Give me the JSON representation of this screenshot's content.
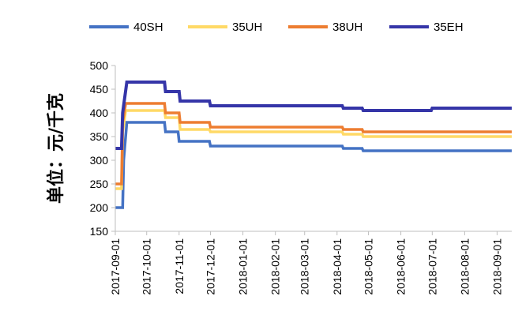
{
  "chart_data": {
    "type": "line",
    "title": "",
    "xlabel": "",
    "ylabel": "单位：元/千克",
    "ylim": [
      150,
      500
    ],
    "yticks": [
      150,
      200,
      250,
      300,
      350,
      400,
      450,
      500
    ],
    "xlim": [
      "2017-09-01",
      "2018-09-15"
    ],
    "xticks": [
      "2017-09-01",
      "2017-10-01",
      "2017-11-01",
      "2017-12-01",
      "2018-01-01",
      "2018-02-01",
      "2018-03-01",
      "2018-04-01",
      "2018-05-01",
      "2018-06-01",
      "2018-07-01",
      "2018-08-01",
      "2018-09-01"
    ],
    "grid": false,
    "legend_position": "top",
    "series": [
      {
        "name": "40SH",
        "color": "#4472C4",
        "points": [
          [
            "2017-09-01",
            200
          ],
          [
            "2017-09-08",
            200
          ],
          [
            "2017-09-09",
            300
          ],
          [
            "2017-09-12",
            380
          ],
          [
            "2017-10-18",
            380
          ],
          [
            "2017-10-19",
            360
          ],
          [
            "2017-10-31",
            360
          ],
          [
            "2017-11-01",
            340
          ],
          [
            "2017-11-30",
            340
          ],
          [
            "2017-12-01",
            330
          ],
          [
            "2018-04-06",
            330
          ],
          [
            "2018-04-07",
            325
          ],
          [
            "2018-04-25",
            325
          ],
          [
            "2018-04-26",
            320
          ],
          [
            "2018-09-15",
            320
          ]
        ]
      },
      {
        "name": "35UH",
        "color": "#FFD966",
        "points": [
          [
            "2017-09-01",
            240
          ],
          [
            "2017-09-07",
            240
          ],
          [
            "2017-09-08",
            360
          ],
          [
            "2017-09-11",
            405
          ],
          [
            "2017-10-18",
            405
          ],
          [
            "2017-10-19",
            390
          ],
          [
            "2017-11-01",
            390
          ],
          [
            "2017-11-02",
            365
          ],
          [
            "2017-11-30",
            365
          ],
          [
            "2017-12-01",
            360
          ],
          [
            "2018-04-06",
            360
          ],
          [
            "2018-04-07",
            355
          ],
          [
            "2018-04-25",
            355
          ],
          [
            "2018-04-26",
            350
          ],
          [
            "2018-09-15",
            350
          ]
        ]
      },
      {
        "name": "38UH",
        "color": "#ED7D31",
        "points": [
          [
            "2017-09-01",
            250
          ],
          [
            "2017-09-07",
            250
          ],
          [
            "2017-09-08",
            380
          ],
          [
            "2017-09-11",
            420
          ],
          [
            "2017-10-18",
            420
          ],
          [
            "2017-10-19",
            400
          ],
          [
            "2017-11-01",
            400
          ],
          [
            "2017-11-02",
            380
          ],
          [
            "2017-11-30",
            380
          ],
          [
            "2017-12-01",
            370
          ],
          [
            "2018-04-06",
            370
          ],
          [
            "2018-04-07",
            365
          ],
          [
            "2018-04-25",
            365
          ],
          [
            "2018-04-26",
            360
          ],
          [
            "2018-09-15",
            360
          ]
        ]
      },
      {
        "name": "35EH",
        "color": "#3535A8",
        "points": [
          [
            "2017-09-01",
            325
          ],
          [
            "2017-09-07",
            325
          ],
          [
            "2017-09-08",
            400
          ],
          [
            "2017-09-12",
            465
          ],
          [
            "2017-10-18",
            465
          ],
          [
            "2017-10-19",
            445
          ],
          [
            "2017-11-01",
            445
          ],
          [
            "2017-11-02",
            425
          ],
          [
            "2017-11-30",
            425
          ],
          [
            "2017-12-01",
            415
          ],
          [
            "2018-04-06",
            415
          ],
          [
            "2018-04-07",
            410
          ],
          [
            "2018-04-25",
            410
          ],
          [
            "2018-04-26",
            405
          ],
          [
            "2018-06-30",
            405
          ],
          [
            "2018-07-01",
            410
          ],
          [
            "2018-09-15",
            410
          ]
        ]
      }
    ]
  }
}
